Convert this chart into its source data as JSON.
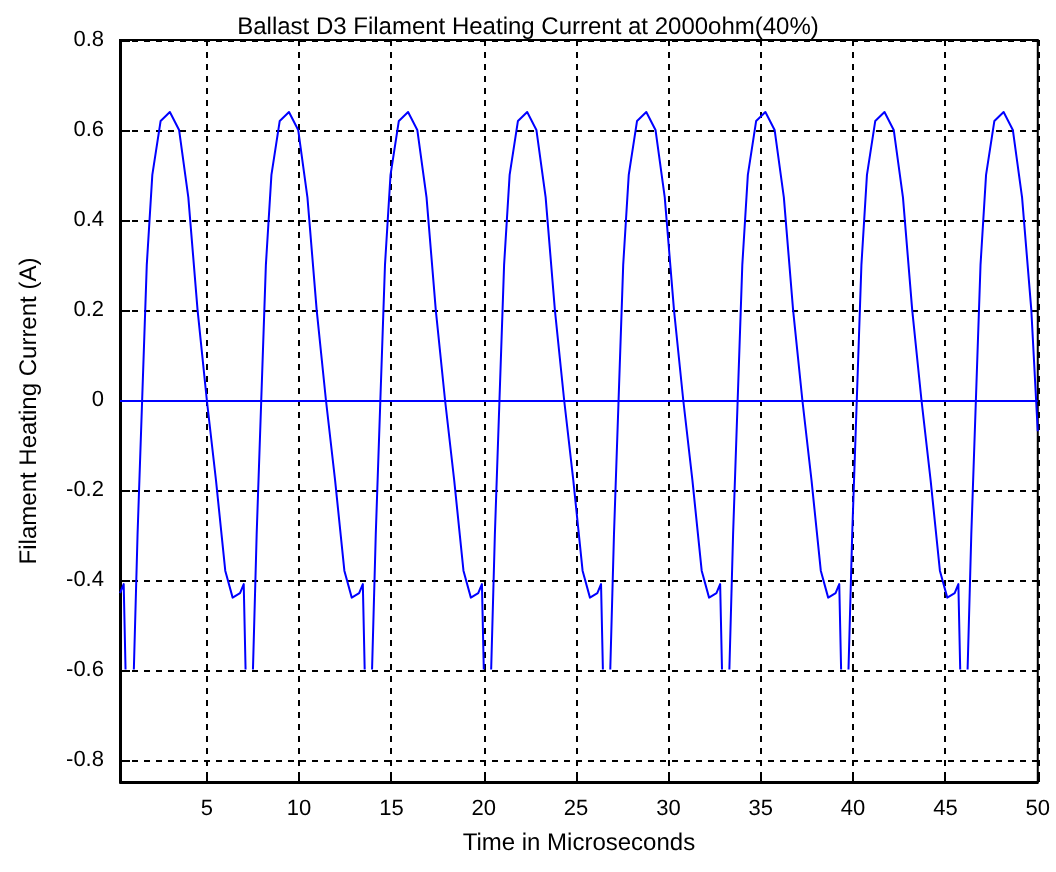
{
  "chart_data": {
    "type": "line",
    "title": "Ballast D3 Filament Heating Current at 2000ohm(40%)",
    "xlabel": "Time in Microseconds",
    "ylabel": "Filament Heating Current (A)",
    "x": [
      0.3,
      0.5,
      0.6,
      0.8,
      1.05,
      1.25,
      1.5,
      1.75,
      2.05,
      2.5,
      3.0,
      3.5,
      4.0,
      4.5,
      5.0,
      5.5,
      6.0,
      6.4,
      6.8,
      7.0,
      7.1,
      7.25,
      7.5,
      7.7,
      7.95,
      8.2,
      8.5,
      8.95,
      9.45,
      9.95,
      10.45,
      10.95,
      11.45,
      11.95,
      12.45,
      12.85,
      13.25,
      13.45,
      13.55,
      13.7,
      13.95,
      14.15,
      14.4,
      14.65,
      14.95,
      15.4,
      15.9,
      16.4,
      16.9,
      17.4,
      17.9,
      18.4,
      18.9,
      19.3,
      19.7,
      19.9,
      20.0,
      20.15,
      20.4,
      20.6,
      20.85,
      21.1,
      21.4,
      21.85,
      22.35,
      22.85,
      23.35,
      23.85,
      24.35,
      24.85,
      25.35,
      25.75,
      26.15,
      26.35,
      26.45,
      26.6,
      26.85,
      27.05,
      27.3,
      27.55,
      27.85,
      28.3,
      28.8,
      29.3,
      29.8,
      30.3,
      30.8,
      31.3,
      31.8,
      32.2,
      32.6,
      32.8,
      32.9,
      33.05,
      33.3,
      33.5,
      33.75,
      34.0,
      34.3,
      34.75,
      35.25,
      35.75,
      36.25,
      36.75,
      37.25,
      37.75,
      38.25,
      38.65,
      39.05,
      39.25,
      39.35,
      39.5,
      39.75,
      39.95,
      40.2,
      40.45,
      40.75,
      41.2,
      41.7,
      42.2,
      42.7,
      43.2,
      43.7,
      44.2,
      44.7,
      45.1,
      45.5,
      45.7,
      45.8,
      45.95,
      46.2,
      46.4,
      46.65,
      46.9,
      47.2,
      47.65,
      48.15,
      48.65,
      49.15,
      49.65,
      50
    ],
    "series": [
      {
        "color": "#0000ff",
        "values": [
          -0.43,
          -0.41,
          -0.6,
          null,
          -0.6,
          -0.3,
          0,
          0.3,
          0.5,
          0.62,
          0.64,
          0.6,
          0.45,
          0.2,
          0,
          -0.18,
          -0.38,
          -0.44,
          -0.43,
          -0.41,
          -0.6,
          null,
          -0.6,
          -0.3,
          0,
          0.3,
          0.5,
          0.62,
          0.64,
          0.6,
          0.45,
          0.2,
          0,
          -0.18,
          -0.38,
          -0.44,
          -0.43,
          -0.41,
          -0.6,
          null,
          -0.6,
          -0.3,
          0,
          0.3,
          0.5,
          0.62,
          0.64,
          0.6,
          0.45,
          0.2,
          0,
          -0.18,
          -0.38,
          -0.44,
          -0.43,
          -0.41,
          -0.6,
          null,
          -0.6,
          -0.3,
          0,
          0.3,
          0.5,
          0.62,
          0.64,
          0.6,
          0.45,
          0.2,
          0,
          -0.18,
          -0.38,
          -0.44,
          -0.43,
          -0.41,
          -0.6,
          null,
          -0.6,
          -0.3,
          0,
          0.3,
          0.5,
          0.62,
          0.64,
          0.6,
          0.45,
          0.2,
          0,
          -0.18,
          -0.38,
          -0.44,
          -0.43,
          -0.41,
          -0.6,
          null,
          -0.6,
          -0.3,
          0,
          0.3,
          0.5,
          0.62,
          0.64,
          0.6,
          0.45,
          0.2,
          0,
          -0.18,
          -0.38,
          -0.44,
          -0.43,
          -0.41,
          -0.6,
          null,
          -0.6,
          -0.3,
          0,
          0.3,
          0.5,
          0.62,
          0.64,
          0.6,
          0.45,
          0.2,
          0,
          -0.18,
          -0.38,
          -0.44,
          -0.43,
          -0.41,
          -0.6,
          null,
          -0.6,
          -0.3,
          0,
          0.3,
          0.5,
          0.62,
          0.64,
          0.6,
          0.45,
          0.2,
          -0.07
        ]
      }
    ],
    "xlim": [
      0.3,
      50
    ],
    "xticks": [
      5,
      10,
      15,
      20,
      25,
      30,
      35,
      40,
      45,
      50
    ],
    "ylim": [
      -0.85,
      0.8
    ],
    "yticks": [
      -0.8,
      -0.6,
      -0.4,
      -0.2,
      0,
      0.2,
      0.4,
      0.6,
      0.8
    ],
    "ref_lines": [
      {
        "axis": "y",
        "value": 0,
        "color": "#0000ff",
        "line_style": "solid"
      }
    ],
    "grid": true,
    "marker": "none",
    "line_style": "solid"
  }
}
